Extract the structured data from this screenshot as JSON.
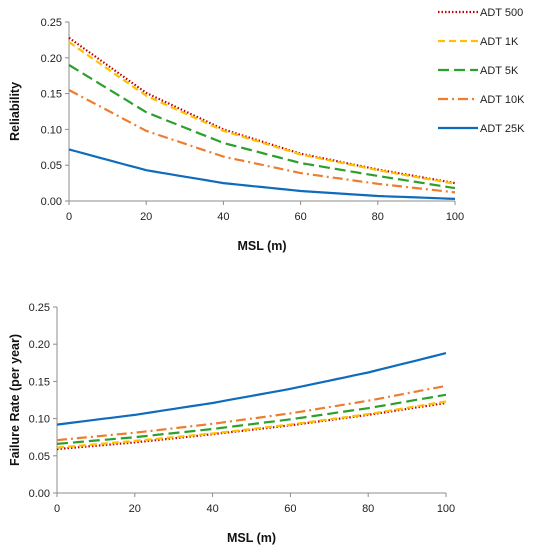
{
  "chart_data": [
    {
      "type": "line",
      "title": "",
      "xlabel": "MSL (m)",
      "ylabel": "Reliability",
      "xlim": [
        0,
        100
      ],
      "ylim": [
        0,
        0.25
      ],
      "xticks": [
        "0",
        "20",
        "40",
        "60",
        "80",
        "100"
      ],
      "yticks": [
        "0.00",
        "0.05",
        "0.10",
        "0.15",
        "0.20",
        "0.25"
      ],
      "grid": false,
      "legend": "right",
      "series": [
        {
          "name": "ADT 500",
          "color": "#C00000",
          "dash": "dotted",
          "x": [
            0,
            20,
            40,
            60,
            80,
            100
          ],
          "values": [
            0.228,
            0.151,
            0.1,
            0.066,
            0.044,
            0.025
          ]
        },
        {
          "name": "ADT 1K",
          "color": "#FFC000",
          "dash": "dashed",
          "x": [
            0,
            20,
            40,
            60,
            80,
            100
          ],
          "values": [
            0.222,
            0.147,
            0.098,
            0.065,
            0.043,
            0.024
          ]
        },
        {
          "name": "ADT 5K",
          "color": "#2CA02C",
          "dash": "longdash",
          "x": [
            0,
            20,
            40,
            60,
            80,
            100
          ],
          "values": [
            0.19,
            0.124,
            0.081,
            0.053,
            0.035,
            0.018
          ]
        },
        {
          "name": "ADT 10K",
          "color": "#ED7D31",
          "dash": "dashdot",
          "x": [
            0,
            20,
            40,
            60,
            80,
            100
          ],
          "values": [
            0.155,
            0.098,
            0.062,
            0.039,
            0.024,
            0.012
          ]
        },
        {
          "name": "ADT 25K",
          "color": "#0F6CBD",
          "dash": "solid",
          "x": [
            0,
            20,
            40,
            60,
            80,
            100
          ],
          "values": [
            0.072,
            0.043,
            0.025,
            0.014,
            0.007,
            0.003
          ]
        }
      ]
    },
    {
      "type": "line",
      "title": "",
      "xlabel": "MSL (m)",
      "ylabel": "Failure Rate (per year)",
      "xlim": [
        0,
        100
      ],
      "ylim": [
        0,
        0.25
      ],
      "xticks": [
        "0",
        "20",
        "40",
        "60",
        "80",
        "100"
      ],
      "yticks": [
        "0.00",
        "0.05",
        "0.10",
        "0.15",
        "0.20",
        "0.25"
      ],
      "grid": false,
      "series": [
        {
          "name": "ADT 500",
          "color": "#C00000",
          "dash": "dotted",
          "x": [
            0,
            20,
            40,
            60,
            80,
            100
          ],
          "values": [
            0.059,
            0.068,
            0.079,
            0.091,
            0.105,
            0.121
          ]
        },
        {
          "name": "ADT 1K",
          "color": "#FFC000",
          "dash": "dashed",
          "x": [
            0,
            20,
            40,
            60,
            80,
            100
          ],
          "values": [
            0.061,
            0.07,
            0.08,
            0.092,
            0.106,
            0.123
          ]
        },
        {
          "name": "ADT 5K",
          "color": "#2CA02C",
          "dash": "longdash",
          "x": [
            0,
            20,
            40,
            60,
            80,
            100
          ],
          "values": [
            0.066,
            0.075,
            0.086,
            0.099,
            0.114,
            0.132
          ]
        },
        {
          "name": "ADT 10K",
          "color": "#ED7D31",
          "dash": "dashdot",
          "x": [
            0,
            20,
            40,
            60,
            80,
            100
          ],
          "values": [
            0.071,
            0.081,
            0.093,
            0.107,
            0.124,
            0.144
          ]
        },
        {
          "name": "ADT 25K",
          "color": "#0F6CBD",
          "dash": "solid",
          "x": [
            0,
            20,
            40,
            60,
            80,
            100
          ],
          "values": [
            0.092,
            0.105,
            0.121,
            0.14,
            0.162,
            0.188
          ]
        }
      ]
    }
  ]
}
